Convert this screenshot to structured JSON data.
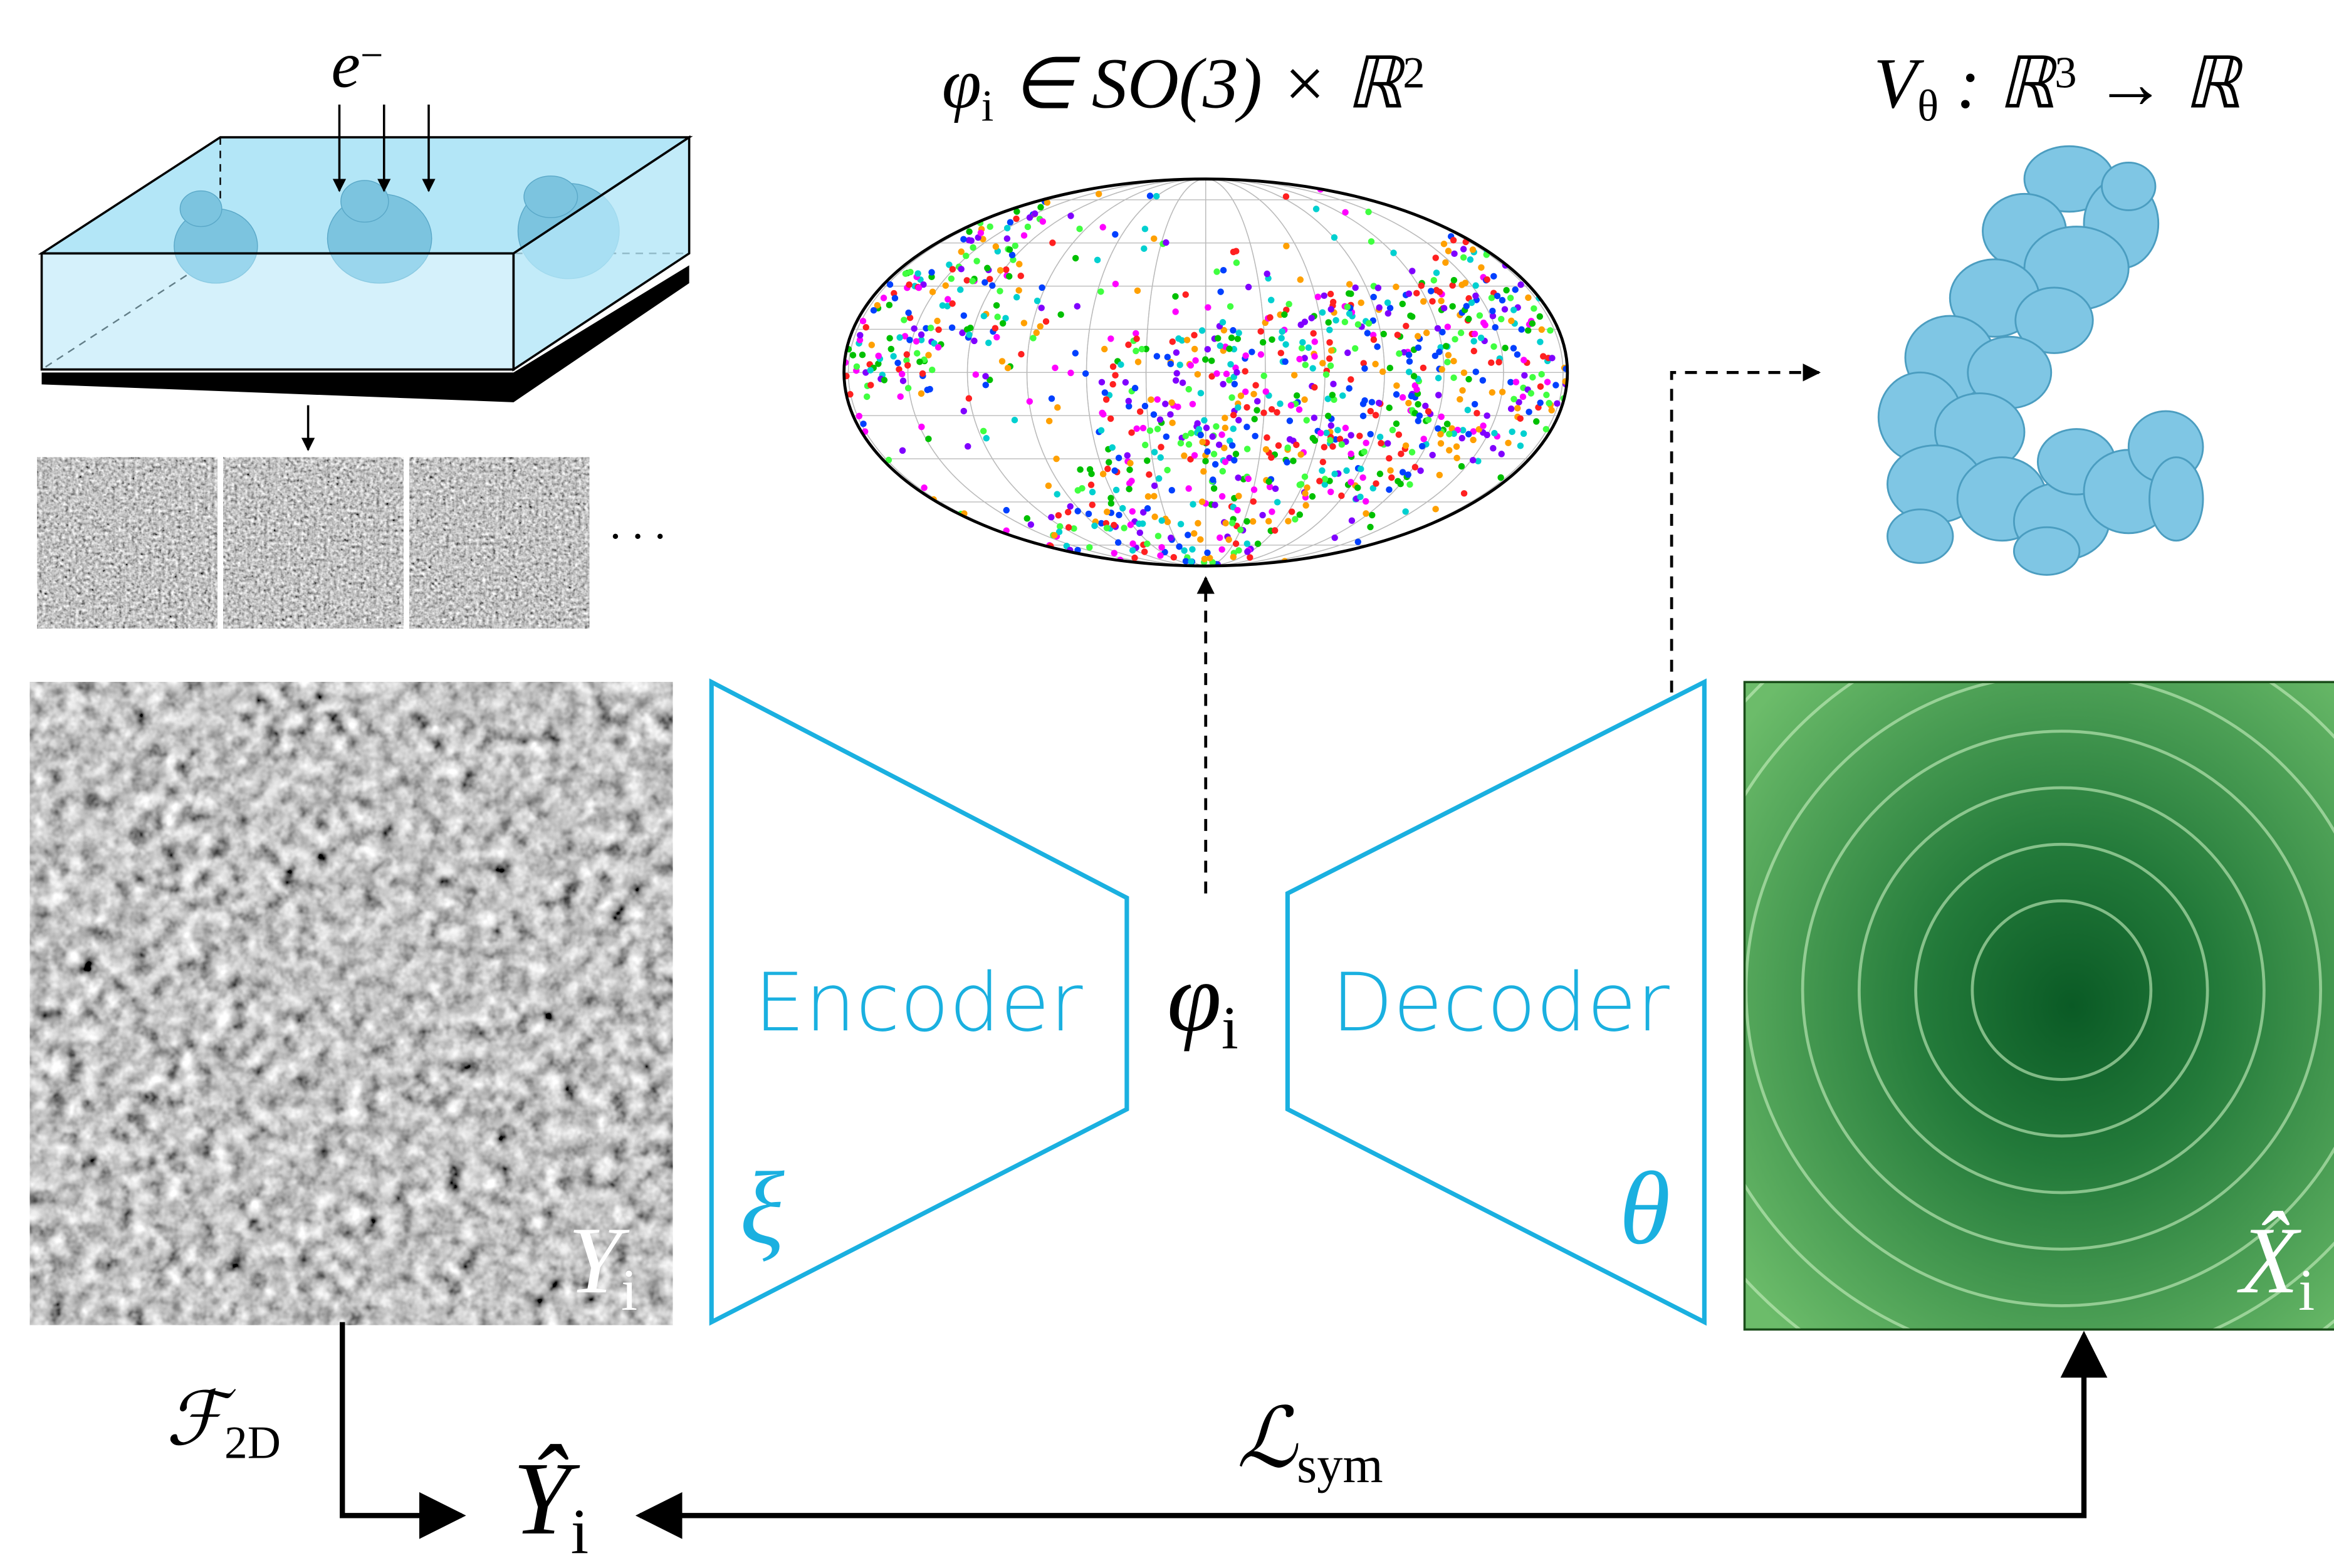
{
  "labels": {
    "electron": [
      {
        "text": "e"
      },
      {
        "sup": "−"
      }
    ],
    "pose_space": [
      {
        "text": "φ"
      },
      {
        "sub": "i"
      },
      {
        "text": " ∈ SO(3) × ℝ"
      },
      {
        "sup": "2"
      }
    ],
    "volume": [
      {
        "text": "V"
      },
      {
        "sub": "θ"
      },
      {
        "text": " : ℝ"
      },
      {
        "sup": "3"
      },
      {
        "text": " → ℝ"
      }
    ],
    "dots": [
      {
        "text": "· · ·"
      }
    ],
    "image": [
      {
        "text": "Y"
      },
      {
        "sub": "i"
      }
    ],
    "encoder": [
      {
        "text": "Encoder"
      }
    ],
    "encoder_param": [
      {
        "text": "ξ"
      }
    ],
    "latent": [
      {
        "text": "φ"
      },
      {
        "sub": "i"
      }
    ],
    "decoder": [
      {
        "text": "Decoder"
      }
    ],
    "decoder_param": [
      {
        "text": "θ"
      }
    ],
    "reconstruction": [
      {
        "text": "X̂"
      },
      {
        "sub": "i"
      }
    ],
    "fourier": [
      {
        "text": "ℱ"
      },
      {
        "sub": "2D"
      }
    ],
    "fourier_image": [
      {
        "text": "Ŷ"
      },
      {
        "sub": "i"
      }
    ],
    "loss": [
      {
        "text": "ℒ"
      },
      {
        "sub": "sym"
      }
    ]
  }
}
